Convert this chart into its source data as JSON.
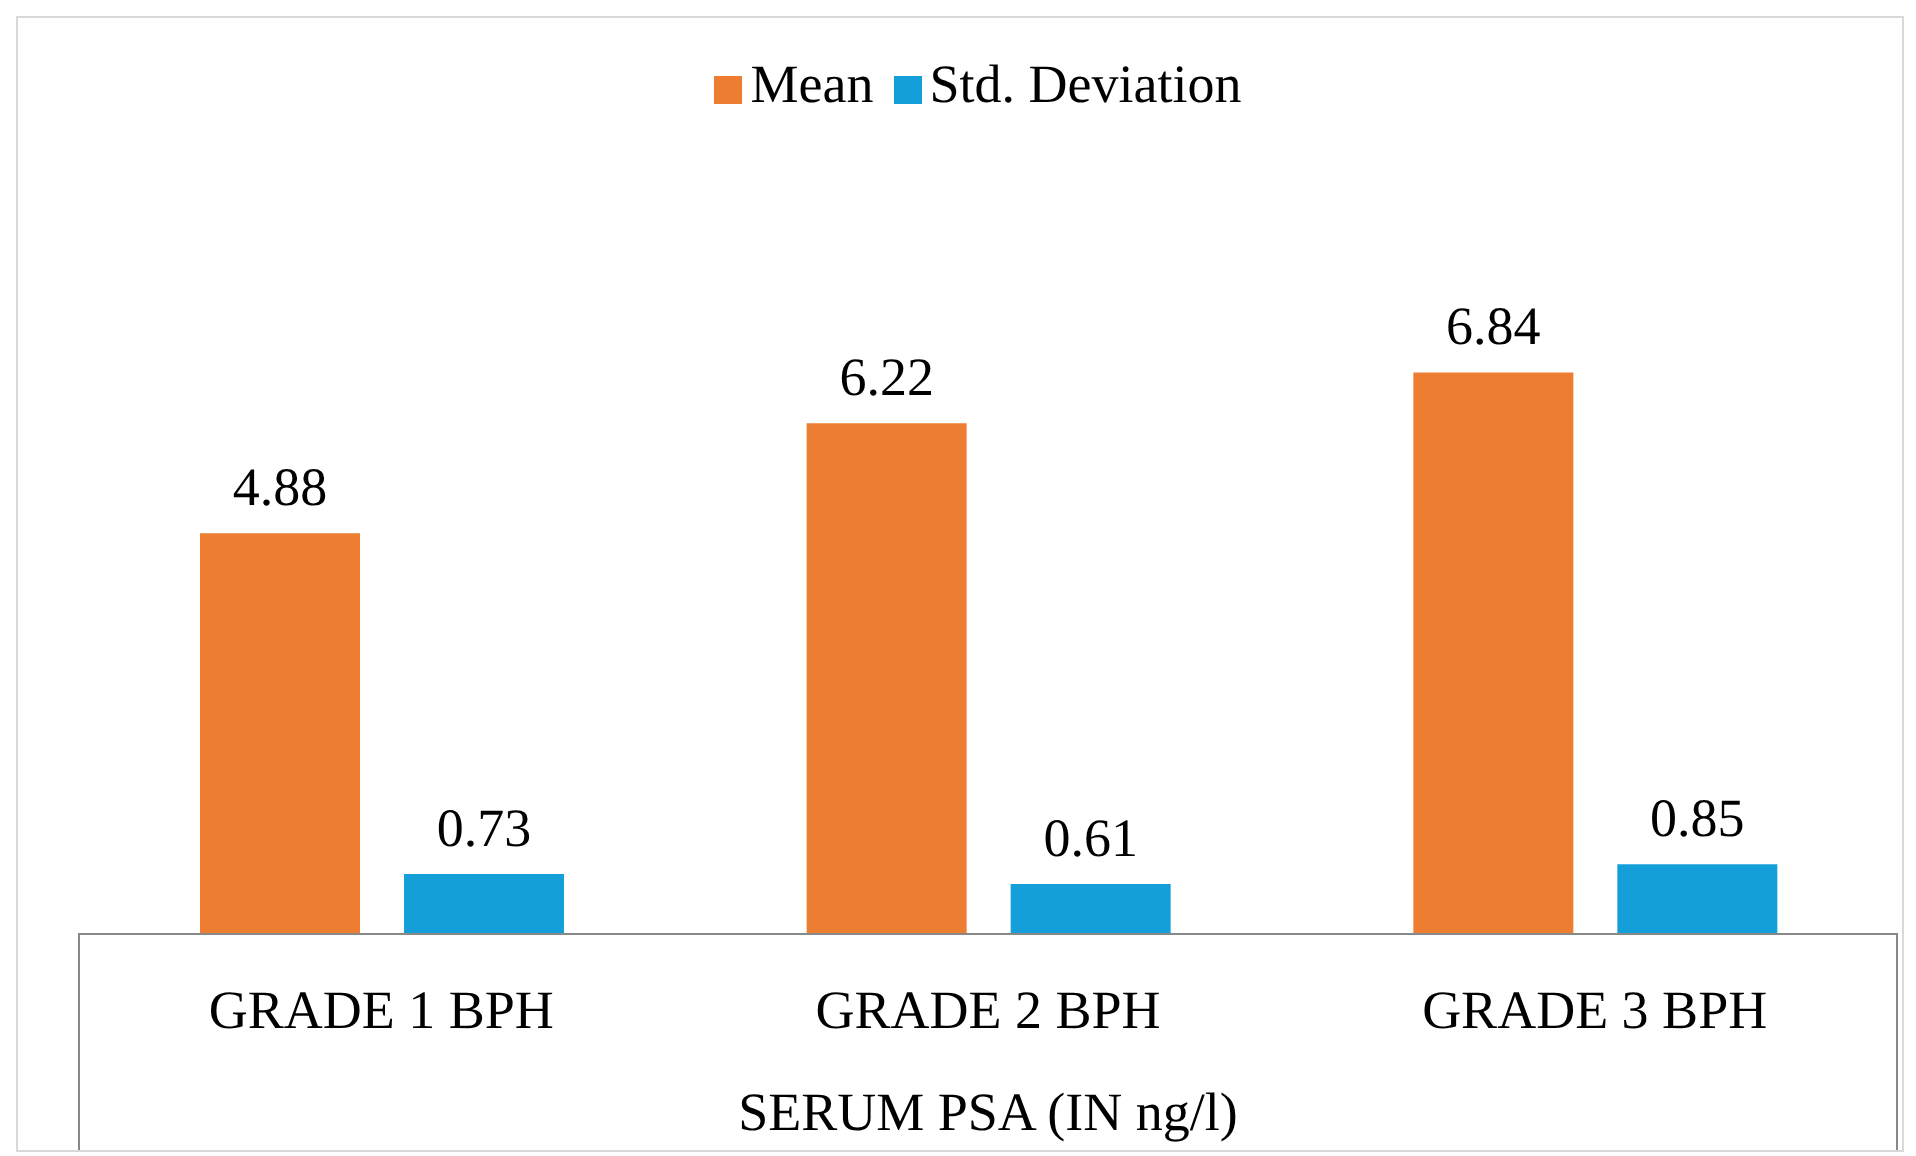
{
  "chart_data": {
    "type": "bar",
    "xlabel": "SERUM PSA  (IN ng/l)",
    "categories": [
      "GRADE 1 BPH",
      "GRADE 2 BPH",
      "GRADE 3 BPH"
    ],
    "series": [
      {
        "name": "Mean",
        "color": "#ed7d31",
        "values": [
          4.88,
          6.22,
          6.84
        ]
      },
      {
        "name": "Std. Deviation",
        "color": "#149fd8",
        "values": [
          0.73,
          0.61,
          0.85
        ]
      }
    ],
    "data_labels": true,
    "legend": "top",
    "tick_labels": "x",
    "grid": false
  }
}
